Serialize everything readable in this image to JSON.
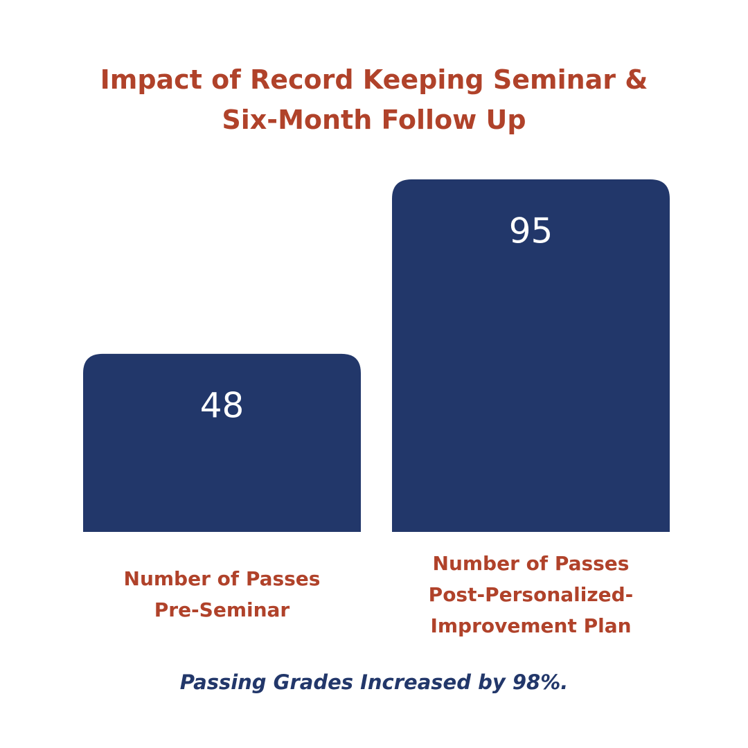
{
  "chart_data": {
    "type": "bar",
    "title": "Impact of Record Keeping Seminar &\nSix-Month Follow Up",
    "categories": [
      "Number of Passes\nPre-Seminar",
      "Number of Passes\nPost-Personalized-\nImprovement Plan"
    ],
    "values": [
      48,
      95
    ],
    "color": "#22376a",
    "footnote": "Passing Grades Increased by 98%."
  }
}
